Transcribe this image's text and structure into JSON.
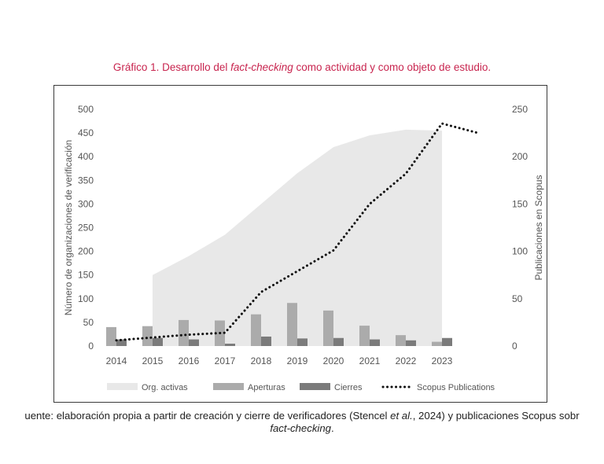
{
  "figure": {
    "title_prefix": "Gráfico 1. Desarrollo del ",
    "title_italic": "fact-checking",
    "title_suffix": " como actividad y como objeto de estudio."
  },
  "caption": {
    "line1_prefix": "uente: elaboración propia a partir de creación y cierre de verificadores (Stencel ",
    "line1_italic": "et al.",
    "line1_suffix": ", 2024) y publicaciones Scopus sobr",
    "line2_italic": "fact-checking",
    "line2_suffix": "."
  },
  "chart_data": {
    "type": "bar",
    "categories": [
      "2014",
      "2015",
      "2016",
      "2017",
      "2018",
      "2019",
      "2020",
      "2021",
      "2022",
      "2023"
    ],
    "ylabel": "Número de organizaciones de verificación",
    "y2label": "Publicaciones en Scopus",
    "ylim": [
      0,
      500
    ],
    "y2lim": [
      0,
      250
    ],
    "yticks": [
      "0",
      "50",
      "100",
      "150",
      "200",
      "250",
      "300",
      "350",
      "400",
      "450",
      "500"
    ],
    "y2ticks": [
      "0",
      "50",
      "100",
      "150",
      "200",
      "250"
    ],
    "area_series": {
      "name": "Org. activas",
      "x": [
        2015,
        2016,
        2017,
        2018,
        2019,
        2020,
        2021,
        2022,
        2023
      ],
      "values": [
        150,
        190,
        235,
        300,
        365,
        420,
        445,
        457,
        455
      ]
    },
    "series": [
      {
        "name": "Aperturas",
        "values": [
          40,
          42,
          55,
          54,
          67,
          91,
          75,
          43,
          23,
          9
        ]
      },
      {
        "name": "Cierres",
        "values": [
          14,
          17,
          14,
          5,
          20,
          16,
          17,
          14,
          12,
          17
        ]
      }
    ],
    "line_series": {
      "name": "Scopus Publications",
      "axis": "right",
      "x": [
        2014,
        2015,
        2016,
        2017,
        2018,
        2019,
        2020,
        2021,
        2022,
        2023,
        2024
      ],
      "values": [
        6,
        9,
        12,
        14,
        57,
        79,
        101,
        150,
        182,
        235,
        225
      ]
    },
    "legend": {
      "position": "bottom",
      "labels": [
        "Org. activas",
        "Aperturas",
        "Cierres",
        "Scopus Publications"
      ]
    },
    "colors": {
      "area": "#e8e8e8",
      "aperturas": "#ababab",
      "cierres": "#7b7b7b",
      "line": "#111111",
      "tick_text": "#555555",
      "title": "#c8254f"
    }
  }
}
